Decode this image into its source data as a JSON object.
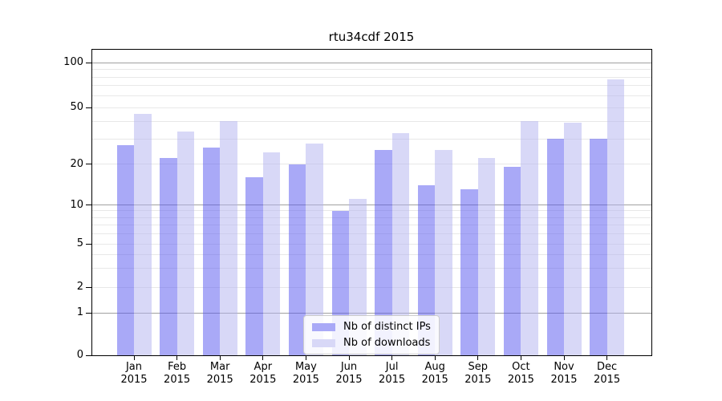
{
  "title": "rtu34cdf 2015",
  "colors": {
    "ips_fill": "rgba(83,83,239,0.5)",
    "downloads_fill": "rgba(177,177,239,0.5)",
    "ips_swatch": "#a9a9f7",
    "downloads_swatch": "#d8d8f7",
    "grid_major": "#a0a0a0",
    "grid_minor": "#e8e8e8",
    "axis": "#000000",
    "legend_border": "#cccccc"
  },
  "legend": {
    "items": [
      {
        "label": "Nb of distinct IPs",
        "swatch": "#a9a9f7"
      },
      {
        "label": "Nb of downloads",
        "swatch": "#d8d8f7"
      }
    ]
  },
  "yaxis": {
    "tick_labels": [
      "100",
      "50",
      "20",
      "10",
      "5",
      "2",
      "1",
      "0"
    ],
    "tick_values": [
      100,
      50,
      20,
      10,
      5,
      2,
      1,
      0
    ],
    "grid_major_values": [
      1,
      10,
      100
    ],
    "grid_minor_values": [
      2,
      3,
      4,
      5,
      6,
      7,
      8,
      9,
      20,
      30,
      40,
      50,
      60,
      70,
      80,
      90
    ]
  },
  "xaxis": {
    "year": "2015",
    "months": [
      "Jan",
      "Feb",
      "Mar",
      "Apr",
      "May",
      "Jun",
      "Jul",
      "Aug",
      "Sep",
      "Oct",
      "Nov",
      "Dec"
    ]
  },
  "chart_data": {
    "type": "bar",
    "title": "rtu34cdf 2015",
    "categories": [
      "Jan 2015",
      "Feb 2015",
      "Mar 2015",
      "Apr 2015",
      "May 2015",
      "Jun 2015",
      "Jul 2015",
      "Aug 2015",
      "Sep 2015",
      "Oct 2015",
      "Nov 2015",
      "Dec 2015"
    ],
    "series": [
      {
        "name": "Nb of distinct IPs",
        "values": [
          27,
          22,
          26,
          16,
          20,
          9,
          25,
          14,
          13,
          19,
          30,
          30
        ]
      },
      {
        "name": "Nb of downloads",
        "values": [
          45,
          34,
          40,
          24,
          28,
          11,
          33,
          25,
          22,
          40,
          39,
          77
        ]
      }
    ],
    "yscale": "symlog",
    "yticks": [
      0,
      1,
      2,
      5,
      10,
      20,
      50,
      100
    ],
    "ylim": [
      0,
      125
    ],
    "xlabel": "",
    "ylabel": "",
    "grid": "horizontal major+minor",
    "legend_position": "lower center"
  }
}
